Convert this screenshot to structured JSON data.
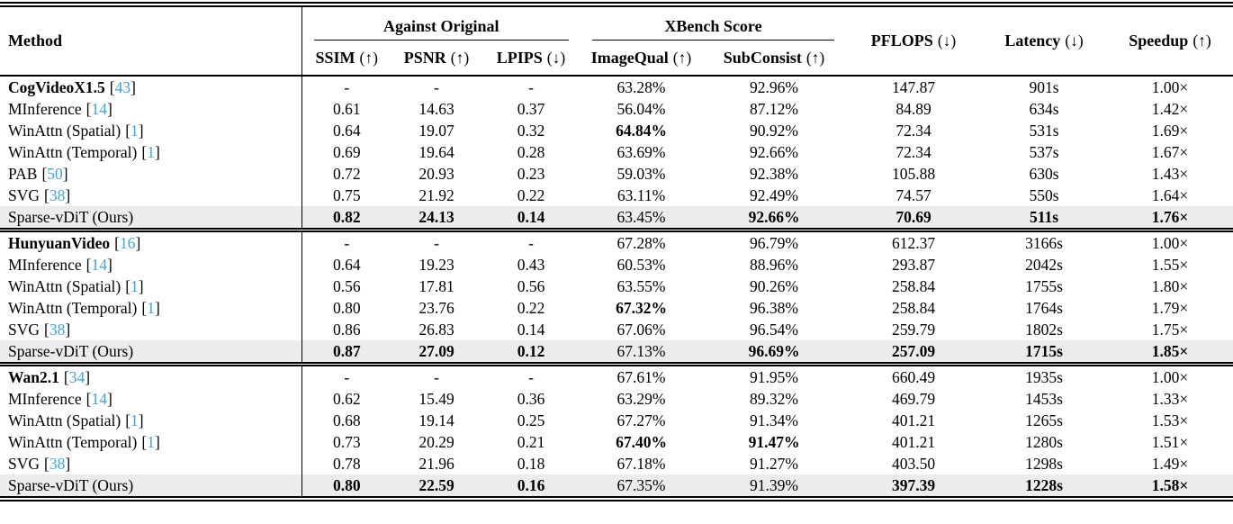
{
  "table": {
    "method_header": "Method",
    "group_headers": [
      {
        "label": "Against Original"
      },
      {
        "label": "XBench Score"
      }
    ],
    "columns": [
      {
        "name": "SSIM",
        "arrow": "(↑)"
      },
      {
        "name": "PSNR",
        "arrow": "(↑)"
      },
      {
        "name": "LPIPS",
        "arrow": "(↓)"
      },
      {
        "name": "ImageQual",
        "arrow": "(↑)"
      },
      {
        "name": "SubConsist",
        "arrow": "(↑)"
      },
      {
        "name": "PFLOPS",
        "arrow": "(↓)"
      },
      {
        "name": "Latency",
        "arrow": "(↓)"
      },
      {
        "name": "Speedup",
        "arrow": "(↑)"
      }
    ],
    "cite_open": "[",
    "cite_close": "]",
    "colors": {
      "citation": "#3BA5DB",
      "highlight": "#ECECEC",
      "rule": "#000000"
    },
    "groups": [
      {
        "rows": [
          {
            "method": "CogVideoX1.5",
            "cite": "43",
            "method_bold": true,
            "highlight": false,
            "values": [
              "-",
              "-",
              "-",
              "63.28%",
              "92.96%",
              "147.87",
              "901s",
              "1.00×"
            ],
            "bold": [
              0,
              0,
              0,
              0,
              0,
              0,
              0,
              0
            ]
          },
          {
            "method": "MInference",
            "cite": "14",
            "method_bold": false,
            "highlight": false,
            "values": [
              "0.61",
              "14.63",
              "0.37",
              "56.04%",
              "87.12%",
              "84.89",
              "634s",
              "1.42×"
            ],
            "bold": [
              0,
              0,
              0,
              0,
              0,
              0,
              0,
              0
            ]
          },
          {
            "method": "WinAttn (Spatial)",
            "cite": "1",
            "method_bold": false,
            "highlight": false,
            "values": [
              "0.64",
              "19.07",
              "0.32",
              "64.84%",
              "90.92%",
              "72.34",
              "531s",
              "1.69×"
            ],
            "bold": [
              0,
              0,
              0,
              1,
              0,
              0,
              0,
              0
            ]
          },
          {
            "method": "WinAttn (Temporal)",
            "cite": "1",
            "method_bold": false,
            "highlight": false,
            "values": [
              "0.69",
              "19.64",
              "0.28",
              "63.69%",
              "92.66%",
              "72.34",
              "537s",
              "1.67×"
            ],
            "bold": [
              0,
              0,
              0,
              0,
              0,
              0,
              0,
              0
            ]
          },
          {
            "method": "PAB",
            "cite": "50",
            "method_bold": false,
            "highlight": false,
            "values": [
              "0.72",
              "20.93",
              "0.23",
              "59.03%",
              "92.38%",
              "105.88",
              "630s",
              "1.43×"
            ],
            "bold": [
              0,
              0,
              0,
              0,
              0,
              0,
              0,
              0
            ]
          },
          {
            "method": "SVG",
            "cite": "38",
            "method_bold": false,
            "highlight": false,
            "values": [
              "0.75",
              "21.92",
              "0.22",
              "63.11%",
              "92.49%",
              "74.57",
              "550s",
              "1.64×"
            ],
            "bold": [
              0,
              0,
              0,
              0,
              0,
              0,
              0,
              0
            ]
          },
          {
            "method": "Sparse-vDiT (Ours)",
            "cite": null,
            "method_bold": false,
            "highlight": true,
            "values": [
              "0.82",
              "24.13",
              "0.14",
              "63.45%",
              "92.66%",
              "70.69",
              "511s",
              "1.76×"
            ],
            "bold": [
              1,
              1,
              1,
              0,
              1,
              1,
              1,
              1
            ]
          }
        ]
      },
      {
        "rows": [
          {
            "method": "HunyuanVideo",
            "cite": "16",
            "method_bold": true,
            "highlight": false,
            "values": [
              "-",
              "-",
              "-",
              "67.28%",
              "96.79%",
              "612.37",
              "3166s",
              "1.00×"
            ],
            "bold": [
              0,
              0,
              0,
              0,
              0,
              0,
              0,
              0
            ]
          },
          {
            "method": "MInference",
            "cite": "14",
            "method_bold": false,
            "highlight": false,
            "values": [
              "0.64",
              "19.23",
              "0.43",
              "60.53%",
              "88.96%",
              "293.87",
              "2042s",
              "1.55×"
            ],
            "bold": [
              0,
              0,
              0,
              0,
              0,
              0,
              0,
              0
            ]
          },
          {
            "method": "WinAttn (Spatial)",
            "cite": "1",
            "method_bold": false,
            "highlight": false,
            "values": [
              "0.56",
              "17.81",
              "0.56",
              "63.55%",
              "90.26%",
              "258.84",
              "1755s",
              "1.80×"
            ],
            "bold": [
              0,
              0,
              0,
              0,
              0,
              0,
              0,
              0
            ]
          },
          {
            "method": "WinAttn (Temporal)",
            "cite": "1",
            "method_bold": false,
            "highlight": false,
            "values": [
              "0.80",
              "23.76",
              "0.22",
              "67.32%",
              "96.38%",
              "258.84",
              "1764s",
              "1.79×"
            ],
            "bold": [
              0,
              0,
              0,
              1,
              0,
              0,
              0,
              0
            ]
          },
          {
            "method": "SVG",
            "cite": "38",
            "method_bold": false,
            "highlight": false,
            "values": [
              "0.86",
              "26.83",
              "0.14",
              "67.06%",
              "96.54%",
              "259.79",
              "1802s",
              "1.75×"
            ],
            "bold": [
              0,
              0,
              0,
              0,
              0,
              0,
              0,
              0
            ]
          },
          {
            "method": "Sparse-vDiT (Ours)",
            "cite": null,
            "method_bold": false,
            "highlight": true,
            "values": [
              "0.87",
              "27.09",
              "0.12",
              "67.13%",
              "96.69%",
              "257.09",
              "1715s",
              "1.85×"
            ],
            "bold": [
              1,
              1,
              1,
              0,
              1,
              1,
              1,
              1
            ]
          }
        ]
      },
      {
        "rows": [
          {
            "method": "Wan2.1",
            "cite": "34",
            "method_bold": true,
            "highlight": false,
            "values": [
              "-",
              "-",
              "-",
              "67.61%",
              "91.95%",
              "660.49",
              "1935s",
              "1.00×"
            ],
            "bold": [
              0,
              0,
              0,
              0,
              0,
              0,
              0,
              0
            ]
          },
          {
            "method": "MInference",
            "cite": "14",
            "method_bold": false,
            "highlight": false,
            "values": [
              "0.62",
              "15.49",
              "0.36",
              "63.29%",
              "89.32%",
              "469.79",
              "1453s",
              "1.33×"
            ],
            "bold": [
              0,
              0,
              0,
              0,
              0,
              0,
              0,
              0
            ]
          },
          {
            "method": "WinAttn (Spatial)",
            "cite": "1",
            "method_bold": false,
            "highlight": false,
            "values": [
              "0.68",
              "19.14",
              "0.25",
              "67.27%",
              "91.34%",
              "401.21",
              "1265s",
              "1.53×"
            ],
            "bold": [
              0,
              0,
              0,
              0,
              0,
              0,
              0,
              0
            ]
          },
          {
            "method": "WinAttn (Temporal)",
            "cite": "1",
            "method_bold": false,
            "highlight": false,
            "values": [
              "0.73",
              "20.29",
              "0.21",
              "67.40%",
              "91.47%",
              "401.21",
              "1280s",
              "1.51×"
            ],
            "bold": [
              0,
              0,
              0,
              1,
              1,
              0,
              0,
              0
            ]
          },
          {
            "method": "SVG",
            "cite": "38",
            "method_bold": false,
            "highlight": false,
            "values": [
              "0.78",
              "21.96",
              "0.18",
              "67.18%",
              "91.27%",
              "403.50",
              "1298s",
              "1.49×"
            ],
            "bold": [
              0,
              0,
              0,
              0,
              0,
              0,
              0,
              0
            ]
          },
          {
            "method": "Sparse-vDiT (Ours)",
            "cite": null,
            "method_bold": false,
            "highlight": true,
            "values": [
              "0.80",
              "22.59",
              "0.16",
              "67.35%",
              "91.39%",
              "397.39",
              "1228s",
              "1.58×"
            ],
            "bold": [
              1,
              1,
              1,
              0,
              0,
              1,
              1,
              1
            ]
          }
        ]
      }
    ]
  }
}
